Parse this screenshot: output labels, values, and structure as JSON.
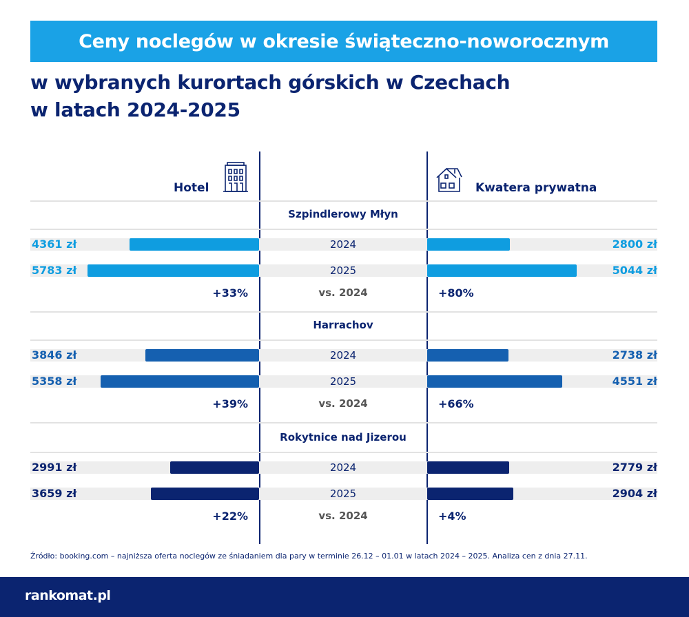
{
  "title": "Ceny noclegów w okresie świąteczno-noworocznym",
  "subtitle_line1": "w wybranych kurortach górskich w Czechach",
  "subtitle_line2": "w latach 2024-2025",
  "headers": {
    "hotel": "Hotel",
    "private": "Kwatera prywatna"
  },
  "vs_label": "vs. 2024",
  "currency": "zł",
  "chart_data": {
    "type": "bar",
    "title": "Ceny noclegów w okresie świąteczno-noworocznym w wybranych kurortach górskich w Czechach w latach 2024-2025",
    "unit": "zł",
    "years": [
      "2024",
      "2025"
    ],
    "sections": [
      {
        "name": "Szpindlerowy Młyn",
        "color": "#0f9de0",
        "hotel": [
          4361,
          5783
        ],
        "hotel_labels": [
          "4361 zł",
          "5783 zł"
        ],
        "hotel_change": "+33%",
        "private": [
          2800,
          5044
        ],
        "private_labels": [
          "2800 zł",
          "5044 zł"
        ],
        "private_change": "+80%"
      },
      {
        "name": "Harrachov",
        "color": "#1560b0",
        "hotel": [
          3846,
          5358
        ],
        "hotel_labels": [
          "3846 zł",
          "5358 zł"
        ],
        "hotel_change": "+39%",
        "private": [
          2738,
          4551
        ],
        "private_labels": [
          "2738 zł",
          "4551 zł"
        ],
        "private_change": "+66%"
      },
      {
        "name": "Rokytnice nad Jizerou",
        "color": "#0b2470",
        "hotel": [
          2991,
          3659
        ],
        "hotel_labels": [
          "2991 zł",
          "3659 zł"
        ],
        "hotel_change": "+22%",
        "private": [
          2779,
          2904
        ],
        "private_labels": [
          "2779 zł",
          "2904 zł"
        ],
        "private_change": "+4%"
      }
    ]
  },
  "source": "Źródło: booking.com – najniższa oferta noclegów ze śniadaniem dla pary w terminie 26.12 – 01.01 w latach 2024 – 2025. Analiza cen z dnia 27.11.",
  "logo": "rankomat.pl"
}
